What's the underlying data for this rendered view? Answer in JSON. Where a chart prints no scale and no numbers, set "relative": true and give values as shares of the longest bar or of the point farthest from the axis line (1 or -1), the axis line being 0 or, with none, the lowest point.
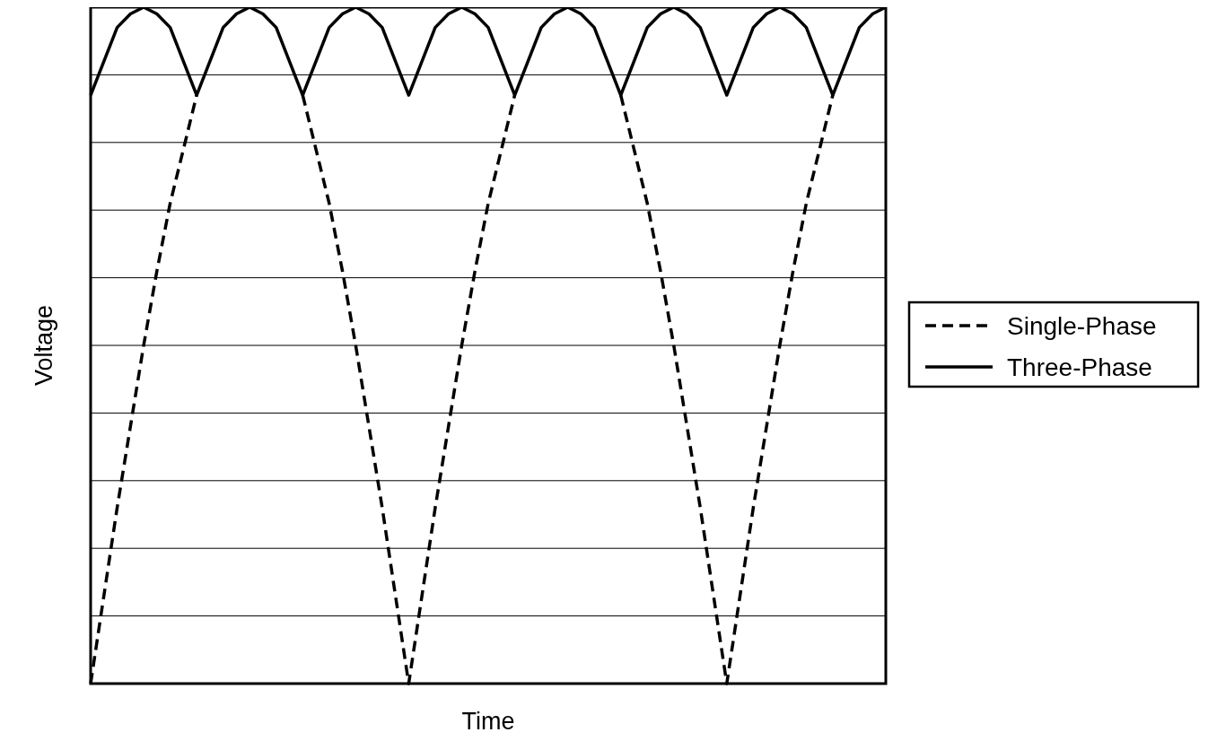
{
  "chart_data": {
    "type": "line",
    "xlabel": "Time",
    "ylabel": "Voltage",
    "relative": true,
    "grid": "y",
    "legend": "right",
    "categories": [
      null,
      null,
      null,
      null,
      null,
      null,
      null,
      null,
      null,
      null,
      null,
      null,
      null,
      null,
      null,
      null,
      null,
      null,
      null,
      null,
      null,
      null,
      null,
      null,
      null,
      null,
      null,
      null,
      null,
      null,
      null,
      null,
      null,
      null,
      null,
      null,
      null,
      null,
      null,
      null,
      null,
      null,
      null,
      null,
      null,
      null,
      null,
      null,
      null,
      null,
      null,
      null,
      null,
      null,
      null,
      null,
      null,
      null,
      null,
      null,
      null
    ],
    "series": [
      {
        "name": "Single-Phase",
        "color": "#000000",
        "line_style": "dashed",
        "values": [
          0,
          0.13,
          0.26,
          0.38,
          0.5,
          0.61,
          0.71,
          0.79,
          0.87,
          null,
          null,
          null,
          null,
          null,
          null,
          null,
          0.87,
          0.79,
          0.71,
          0.61,
          0.5,
          0.38,
          0.26,
          0.13,
          0,
          0.13,
          0.26,
          0.38,
          0.5,
          0.61,
          0.71,
          0.79,
          0.87,
          null,
          null,
          null,
          null,
          null,
          null,
          null,
          0.87,
          0.79,
          0.71,
          0.61,
          0.5,
          0.38,
          0.26,
          0.13,
          0,
          0.13,
          0.26,
          0.38,
          0.5,
          0.61,
          0.71,
          0.79,
          0.87,
          null,
          null,
          null,
          null
        ]
      },
      {
        "name": "Three-Phase",
        "color": "#000000",
        "line_style": "solid",
        "values": [
          0.87,
          0.92,
          0.97,
          0.99,
          1,
          0.99,
          0.97,
          0.92,
          0.87,
          0.92,
          0.97,
          0.99,
          1,
          0.99,
          0.97,
          0.92,
          0.87,
          0.92,
          0.97,
          0.99,
          1,
          0.99,
          0.97,
          0.92,
          0.87,
          0.92,
          0.97,
          0.99,
          1,
          0.99,
          0.97,
          0.92,
          0.87,
          0.92,
          0.97,
          0.99,
          1,
          0.99,
          0.97,
          0.92,
          0.87,
          0.92,
          0.97,
          0.99,
          1,
          0.99,
          0.97,
          0.92,
          0.87,
          0.92,
          0.97,
          0.99,
          1,
          0.99,
          0.97,
          0.92,
          0.87,
          0.92,
          0.97,
          0.99,
          1
        ]
      }
    ]
  }
}
